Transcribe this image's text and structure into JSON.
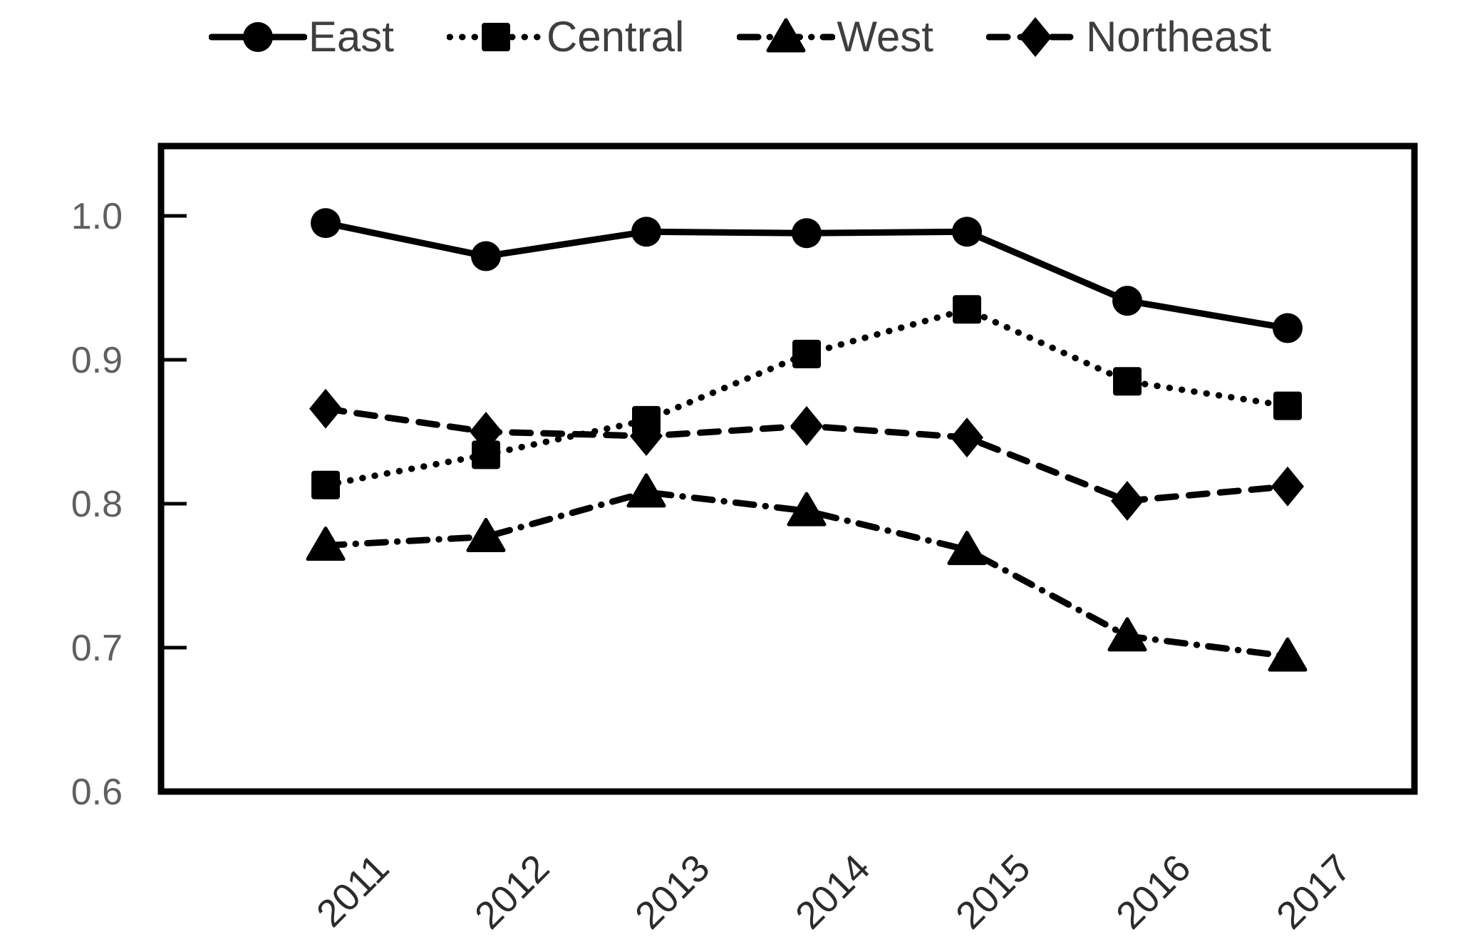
{
  "chart_data": {
    "type": "line",
    "title": "",
    "xlabel": "",
    "ylabel": "",
    "categories": [
      "2011",
      "2012",
      "2013",
      "2014",
      "2015",
      "2016",
      "2017"
    ],
    "series": [
      {
        "name": "East",
        "marker": "circle",
        "line_style": "solid",
        "color": "#000000",
        "values": [
          0.995,
          0.972,
          0.989,
          0.988,
          0.989,
          0.941,
          0.922
        ]
      },
      {
        "name": "Central",
        "marker": "square",
        "line_style": "dotted",
        "color": "#000000",
        "values": [
          0.813,
          0.834,
          0.858,
          0.904,
          0.935,
          0.885,
          0.868
        ]
      },
      {
        "name": "West",
        "marker": "triangle",
        "line_style": "dash-dot",
        "color": "#000000",
        "values": [
          0.771,
          0.777,
          0.808,
          0.795,
          0.768,
          0.708,
          0.694
        ]
      },
      {
        "name": "Northeast",
        "marker": "diamond",
        "line_style": "dashed",
        "color": "#000000",
        "values": [
          0.866,
          0.85,
          0.847,
          0.854,
          0.846,
          0.802,
          0.812
        ]
      }
    ],
    "yticks": [
      "1.0",
      "0.9",
      "0.8",
      "0.7",
      "0.6"
    ],
    "ytick_values": [
      1.0,
      0.9,
      0.8,
      0.7,
      0.6
    ],
    "ylim": [
      0.6,
      1.048
    ],
    "grid": false,
    "legend_position": "top",
    "axis_color": "#000000",
    "ytick_label_color": "#5f5f5f",
    "xtick_label_color": "#2b2b2b",
    "legend_text_color": "#3f3f3f",
    "background_color": "#ffffff"
  }
}
